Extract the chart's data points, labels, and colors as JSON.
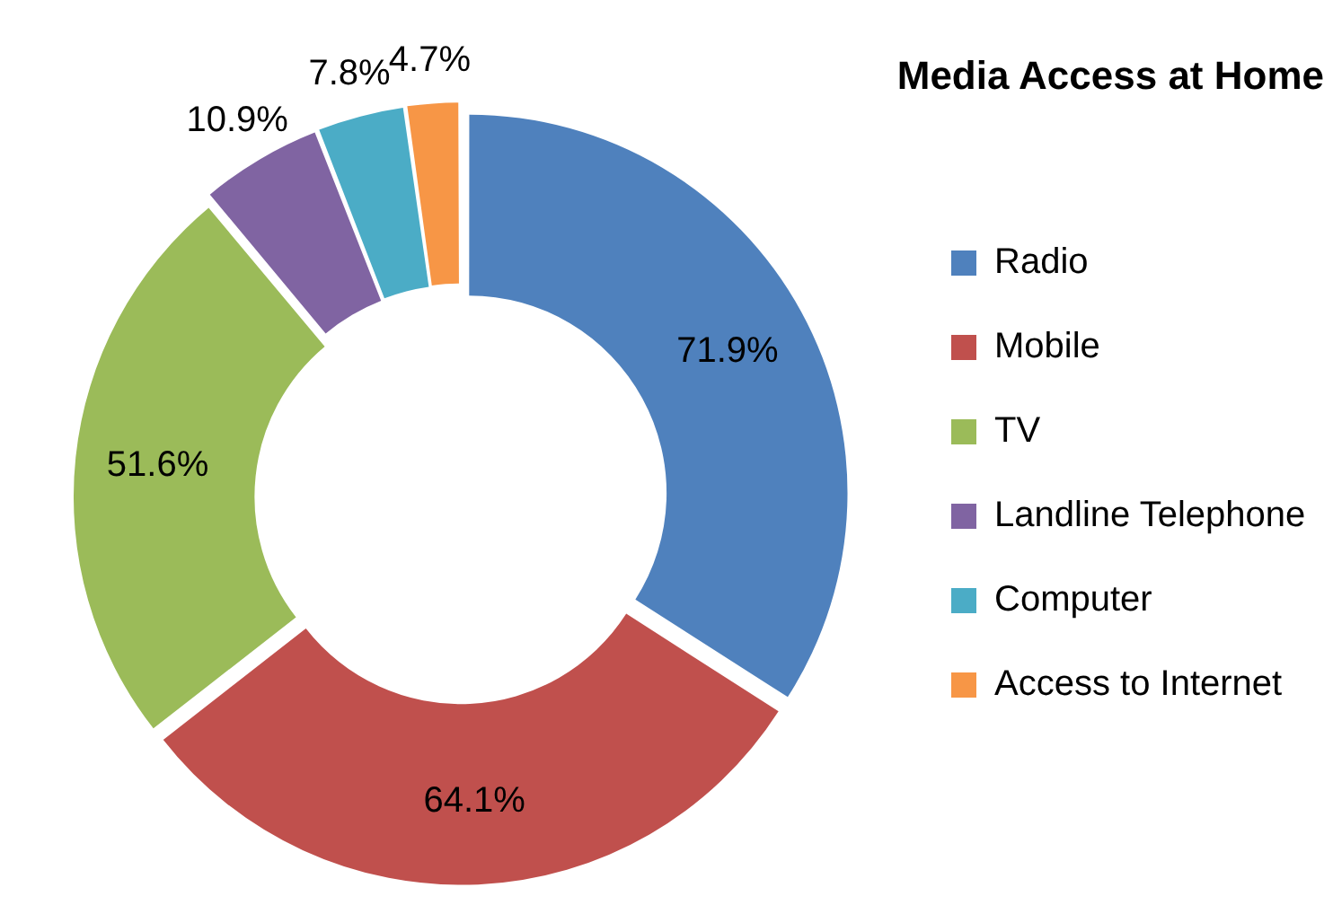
{
  "chart_data": {
    "type": "donut",
    "title": "Media Access at Home",
    "categories": [
      "Radio",
      "Mobile",
      "TV",
      "Landline Telephone",
      "Computer",
      "Access to Internet"
    ],
    "values": [
      71.9,
      64.1,
      51.6,
      10.9,
      7.8,
      4.7
    ],
    "colors": [
      "#4f81bd",
      "#c0504d",
      "#9bbb59",
      "#8064a2",
      "#4bacc6",
      "#f79646"
    ],
    "value_labels": [
      "71.9%",
      "64.1%",
      "51.6%",
      "10.9%",
      "7.8%",
      "4.7%"
    ],
    "legend": "right"
  }
}
